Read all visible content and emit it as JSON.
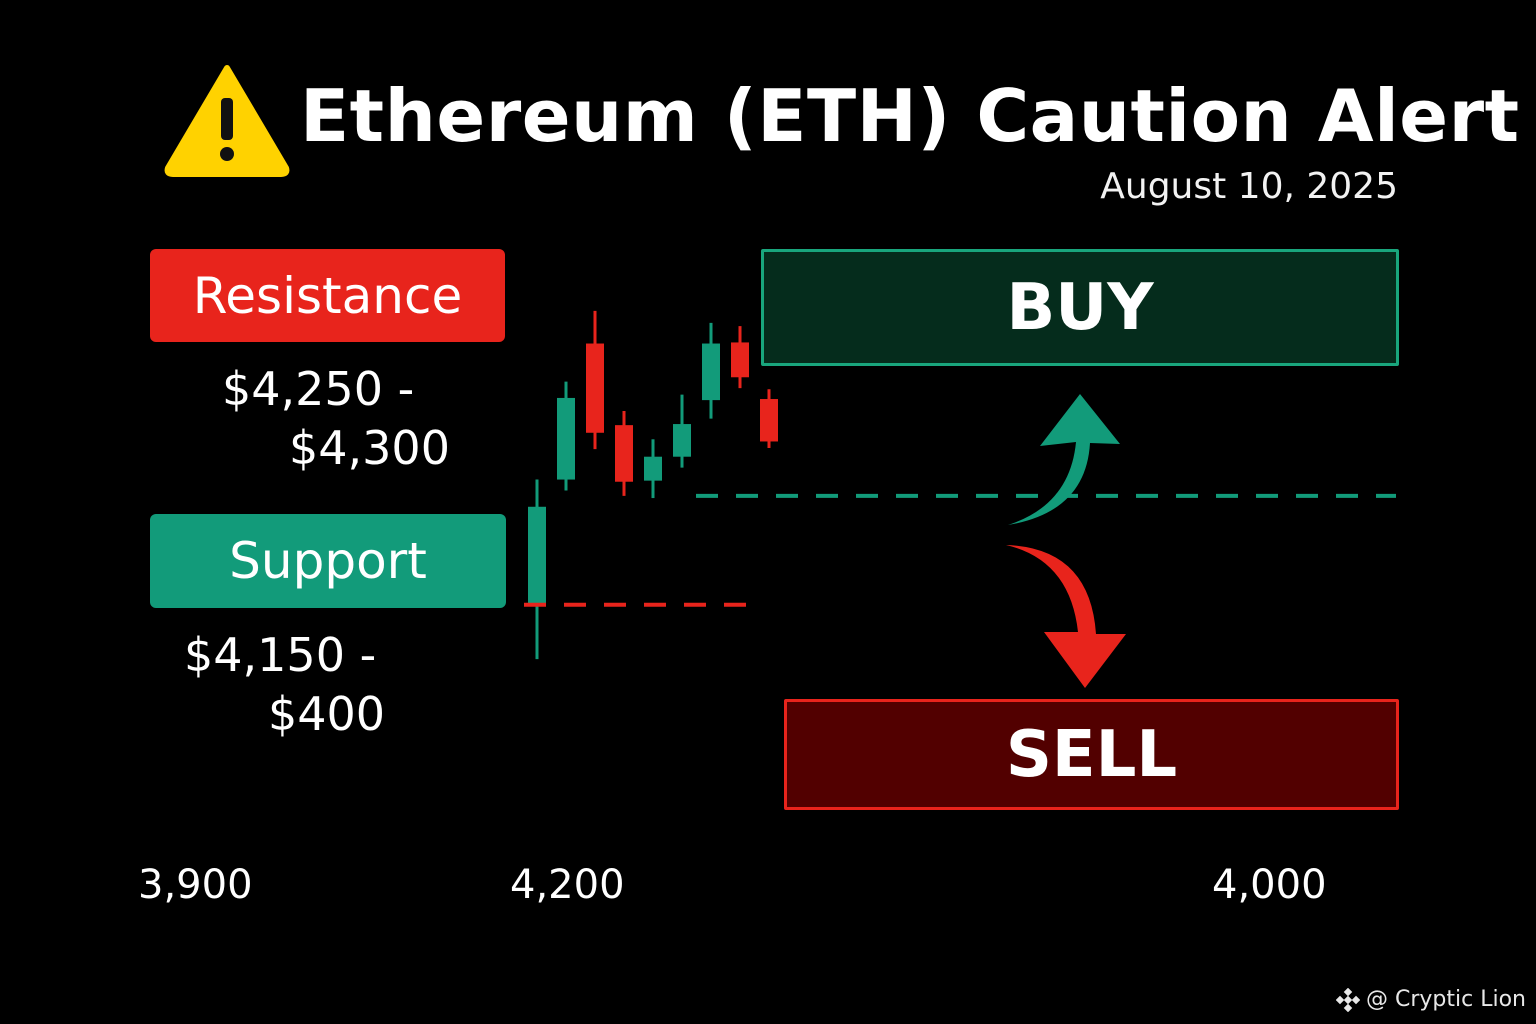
{
  "title": "Ethereum (ETH) Caution Alert",
  "date": "August 10, 2025",
  "resistance": {
    "label": "Resistance",
    "range_line1": "$4,250 -",
    "range_line2": "$4,300"
  },
  "support": {
    "label": "Support",
    "range_line1": "$4,150 -",
    "range_line2": "$400"
  },
  "buy_label": "BUY",
  "sell_label": "SELL",
  "watermark": "@ Cryptic Lion",
  "colors": {
    "bull": "#129b7a",
    "bear": "#e8241c",
    "background": "#000000",
    "warning": "#ffd200"
  },
  "icons": {
    "warning": "warning-triangle-icon",
    "watermark": "binance-diamond-icon"
  },
  "chart_data": {
    "type": "candlestick",
    "x_tick_labels": [
      "3,900",
      "4,200",
      "4,000"
    ],
    "candles": [
      {
        "direction": "up",
        "open": 4140,
        "close": 4230,
        "high": 4255,
        "low": 4090
      },
      {
        "direction": "up",
        "open": 4255,
        "close": 4330,
        "high": 4345,
        "low": 4245
      },
      {
        "direction": "down",
        "open": 4380,
        "close": 4298,
        "high": 4410,
        "low": 4283
      },
      {
        "direction": "down",
        "open": 4305,
        "close": 4253,
        "high": 4318,
        "low": 4240
      },
      {
        "direction": "up",
        "open": 4254,
        "close": 4276,
        "high": 4292,
        "low": 4238
      },
      {
        "direction": "up",
        "open": 4276,
        "close": 4306,
        "high": 4333,
        "low": 4266
      },
      {
        "direction": "up",
        "open": 4328,
        "close": 4380,
        "high": 4399,
        "low": 4311
      },
      {
        "direction": "down",
        "open": 4381,
        "close": 4349,
        "high": 4396,
        "low": 4339
      },
      {
        "direction": "down",
        "open": 4329,
        "close": 4290,
        "high": 4338,
        "low": 4284
      }
    ],
    "levels": [
      {
        "name": "support",
        "value": 4240,
        "style": "dashed"
      },
      {
        "name": "sell line",
        "value": 4140,
        "style": "dashed"
      }
    ],
    "y_range": [
      4080,
      4420
    ],
    "grid": false,
    "legend": "none"
  }
}
